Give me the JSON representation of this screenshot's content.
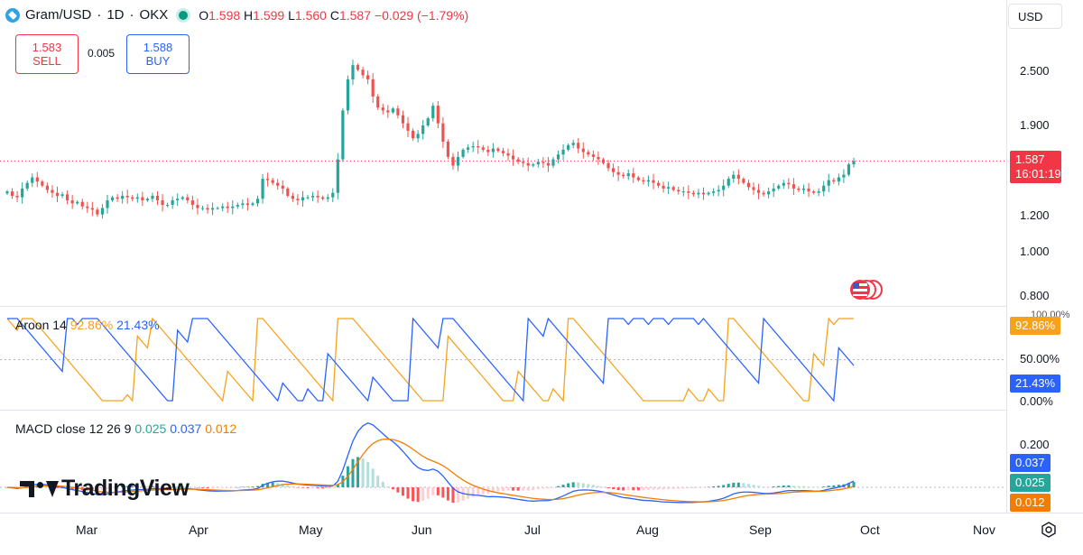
{
  "header": {
    "symbol": "Gram/USD",
    "interval": "1D",
    "exchange": "OKX",
    "sep": "·",
    "o_label": "O",
    "o_value": "1.598",
    "h_label": "H",
    "h_value": "1.599",
    "l_label": "L",
    "l_value": "1.560",
    "c_label": "C",
    "c_value": "1.587",
    "change": "−0.029 (−1.79%)"
  },
  "trade": {
    "sell_price": "1.583",
    "sell_label": "SELL",
    "spread": "0.005",
    "buy_price": "1.588",
    "buy_label": "BUY"
  },
  "currency": "USD",
  "price_tag": {
    "price": "1.587",
    "countdown": "16:01:19"
  },
  "aroon": {
    "name": "Aroon",
    "length": "14",
    "up": "92.86%",
    "down": "21.43%",
    "mid_label": "50.00%",
    "zero_label": "0.00%",
    "top_label": "100.00%"
  },
  "macd": {
    "name": "MACD",
    "params": "close 12 26 9",
    "hist": "0.025",
    "macd": "0.037",
    "signal": "0.012",
    "tick": "0.200"
  },
  "brand": "TradingView",
  "colors": {
    "up": "#26a69a",
    "down": "#ef5350",
    "aroon_up": "#f7a21b",
    "aroon_down": "#2962ff",
    "macd": "#2962ff",
    "signal": "#f57c00"
  },
  "chart_data": {
    "type": "candlestick",
    "x_ticks": [
      "Mar",
      "Apr",
      "May",
      "Jun",
      "Jul",
      "Aug",
      "Sep",
      "Oct",
      "Nov"
    ],
    "y_ticks": [
      "2.500",
      "1.900",
      "1.200",
      "1.000",
      "0.800"
    ],
    "y_tick_values": [
      2.5,
      1.9,
      1.2,
      1.0,
      0.8
    ],
    "log_scale": true,
    "last_close": 1.587,
    "series": [
      {
        "name": "Gram/USD",
        "close_path": [
          1.36,
          1.33,
          1.32,
          1.38,
          1.42,
          1.46,
          1.43,
          1.4,
          1.37,
          1.35,
          1.33,
          1.34,
          1.3,
          1.28,
          1.29,
          1.26,
          1.25,
          1.24,
          1.21,
          1.25,
          1.3,
          1.32,
          1.31,
          1.33,
          1.32,
          1.31,
          1.32,
          1.3,
          1.31,
          1.33,
          1.3,
          1.27,
          1.27,
          1.3,
          1.31,
          1.32,
          1.3,
          1.27,
          1.25,
          1.25,
          1.24,
          1.25,
          1.25,
          1.26,
          1.25,
          1.26,
          1.27,
          1.28,
          1.27,
          1.28,
          1.31,
          1.45,
          1.44,
          1.42,
          1.4,
          1.38,
          1.33,
          1.31,
          1.3,
          1.32,
          1.32,
          1.33,
          1.32,
          1.31,
          1.32,
          1.35,
          1.6,
          2.05,
          2.4,
          2.58,
          2.52,
          2.45,
          2.4,
          2.2,
          2.08,
          2.05,
          2.03,
          2.07,
          2.0,
          1.92,
          1.85,
          1.78,
          1.82,
          1.9,
          1.97,
          2.1,
          1.92,
          1.75,
          1.62,
          1.55,
          1.62,
          1.68,
          1.7,
          1.71,
          1.7,
          1.68,
          1.66,
          1.69,
          1.67,
          1.65,
          1.63,
          1.6,
          1.58,
          1.57,
          1.55,
          1.56,
          1.58,
          1.57,
          1.55,
          1.6,
          1.64,
          1.68,
          1.72,
          1.74,
          1.69,
          1.66,
          1.64,
          1.62,
          1.6,
          1.57,
          1.53,
          1.5,
          1.48,
          1.47,
          1.49,
          1.46,
          1.44,
          1.43,
          1.44,
          1.42,
          1.4,
          1.38,
          1.39,
          1.37,
          1.36,
          1.36,
          1.35,
          1.34,
          1.35,
          1.34,
          1.35,
          1.36,
          1.37,
          1.4,
          1.45,
          1.48,
          1.45,
          1.42,
          1.39,
          1.37,
          1.35,
          1.34,
          1.36,
          1.38,
          1.4,
          1.42,
          1.41,
          1.38,
          1.37,
          1.38,
          1.36,
          1.35,
          1.36,
          1.4,
          1.44,
          1.43,
          1.46,
          1.48,
          1.56,
          1.587
        ]
      }
    ]
  }
}
